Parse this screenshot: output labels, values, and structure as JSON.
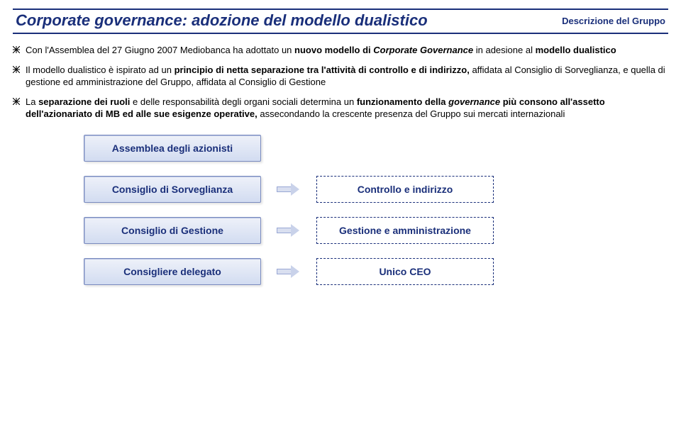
{
  "header": {
    "title_prefix": "Corporate governance:",
    "title_rest": " adozione del modello dualistico",
    "right": "Descrizione del Gruppo"
  },
  "bullets": [
    {
      "segments": [
        {
          "t": "Con l'Assemblea del 27 Giugno 2007 Mediobanca ha adottato un "
        },
        {
          "t": "nuovo modello di ",
          "b": true
        },
        {
          "t": "Corporate Governance",
          "b": true,
          "i": true
        },
        {
          "t": " in adesione al "
        },
        {
          "t": "modello dualistico",
          "b": true
        }
      ]
    },
    {
      "segments": [
        {
          "t": "Il modello dualistico è ispirato ad un "
        },
        {
          "t": "principio di netta separazione tra l'attività di controllo e di indirizzo,",
          "b": true
        },
        {
          "t": " affidata al Consiglio di Sorveglianza, e quella di gestione ed amministrazione del Gruppo, affidata al Consiglio di Gestione"
        }
      ]
    },
    {
      "segments": [
        {
          "t": "La "
        },
        {
          "t": "separazione dei ruoli",
          "b": true
        },
        {
          "t": " e delle responsabilità degli organi sociali determina un "
        },
        {
          "t": "funzionamento della ",
          "b": true
        },
        {
          "t": "governance",
          "b": true,
          "i": true
        },
        {
          "t": " più consono all'assetto dell'azionariato di MB ed alle sue esigenze operative,",
          "b": true
        },
        {
          "t": " assecondando la crescente presenza del Gruppo sui mercati internazionali"
        }
      ]
    }
  ],
  "diagram": {
    "rows": [
      {
        "left": "Assemblea degli azionisti",
        "right": null
      },
      {
        "left": "Consiglio di Sorveglianza",
        "right": "Controllo e indirizzo"
      },
      {
        "left": "Consiglio di Gestione",
        "right": "Gestione e amministrazione"
      },
      {
        "left": "Consigliere delegato",
        "right": "Unico CEO"
      }
    ]
  },
  "colors": {
    "brand": "#1a2f7a",
    "box_fill_top": "#eef1f9",
    "box_fill_bottom": "#d2dcf1",
    "box_border": "#7a8bbf",
    "arrow_fill": "#d9dff0"
  }
}
